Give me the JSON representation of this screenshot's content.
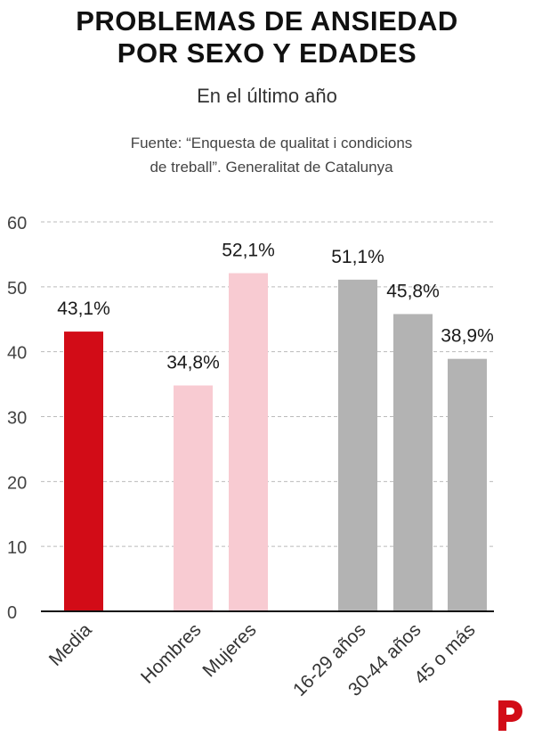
{
  "header": {
    "title_line1": "PROBLEMAS DE ANSIEDAD",
    "title_line2": "POR SEXO Y EDADES",
    "subtitle": "En el último año",
    "source_line1": "Fuente: “Enquesta de qualitat i condicions",
    "source_line2": "de treball”. Generalitat de Catalunya"
  },
  "chart_data": {
    "type": "bar",
    "title": "PROBLEMAS DE ANSIEDAD POR SEXO Y EDADES",
    "subtitle": "En el último año",
    "xlabel": "",
    "ylabel": "",
    "ylim": [
      0,
      60
    ],
    "yticks": [
      0,
      10,
      20,
      30,
      40,
      50,
      60
    ],
    "grid": true,
    "categories": [
      "Media",
      "Hombres",
      "Mujeres",
      "16-29 años",
      "30-44 años",
      "45 o más"
    ],
    "values": [
      43.1,
      34.8,
      52.1,
      51.1,
      45.8,
      38.9
    ],
    "labels": [
      "43,1%",
      "34,8%",
      "52,1%",
      "51,1%",
      "45,8%",
      "38,9%"
    ],
    "colors": [
      "#d20c17",
      "#f8cbd2",
      "#f8cbd2",
      "#b3b3b3",
      "#b3b3b3",
      "#b3b3b3"
    ]
  },
  "colors": {
    "axis": "#111111",
    "grid": "#bbbbbb",
    "brand": "#d20c17"
  },
  "logo_icon": "brand-p-icon"
}
